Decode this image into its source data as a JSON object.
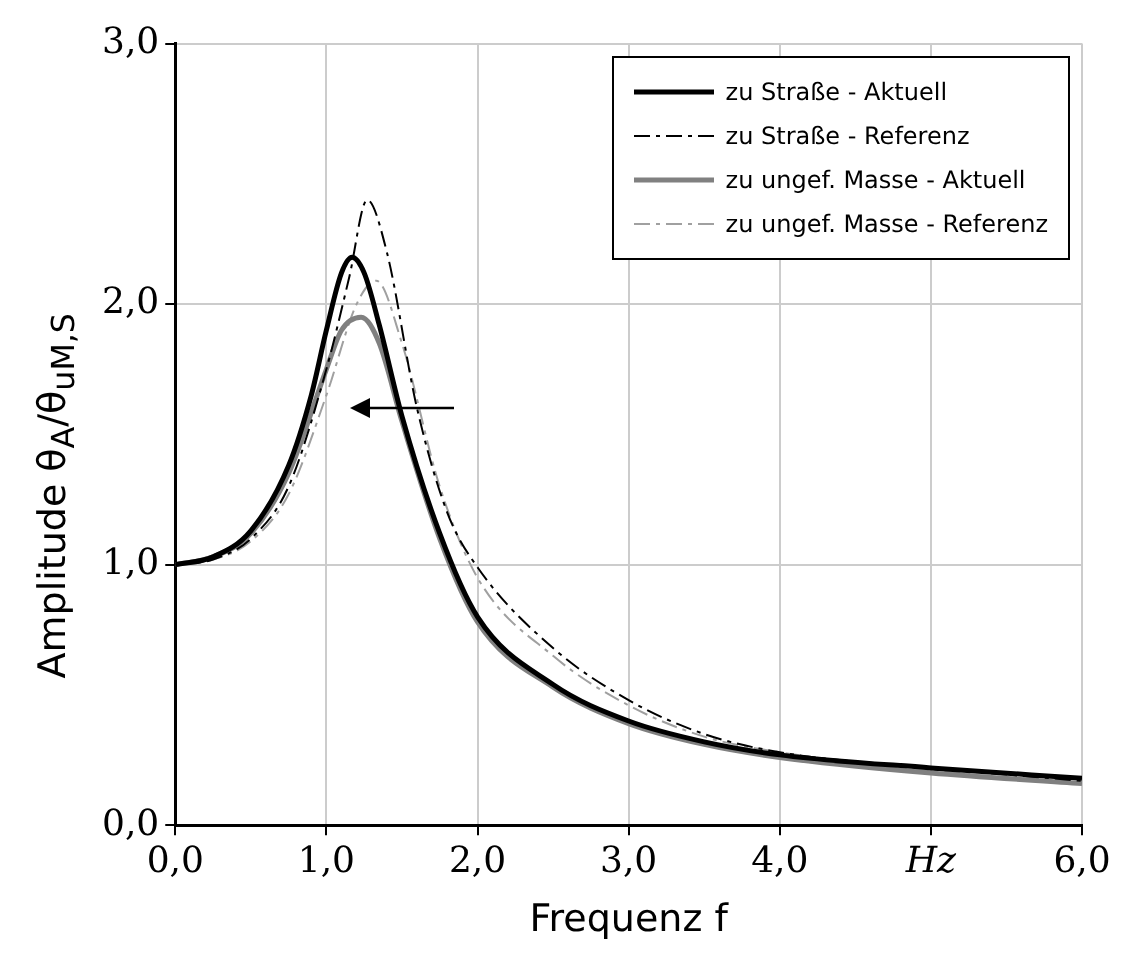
{
  "chart_data": {
    "type": "line",
    "xlabel": "Frequenz f",
    "ylabel": "Amplitude θ$_{A}$/θ$_{uM,S}$",
    "xlim": [
      0,
      6
    ],
    "xticks": [
      {
        "value": 0,
        "label": "0,0"
      },
      {
        "value": 1,
        "label": "1,0"
      },
      {
        "value": 2,
        "label": "2,0"
      },
      {
        "value": 3,
        "label": "3,0"
      },
      {
        "value": 4,
        "label": "4,0"
      },
      {
        "value": 5,
        "label": "Hz"
      },
      {
        "value": 6,
        "label": "6,0"
      }
    ],
    "ylim": [
      0,
      3
    ],
    "yticks": [
      {
        "value": 0,
        "label": "0,0"
      },
      {
        "value": 1,
        "label": "1,0"
      },
      {
        "value": 2,
        "label": "2,0"
      },
      {
        "value": 3,
        "label": "3,0"
      }
    ],
    "grid": true,
    "legend": "top right",
    "marker": "none",
    "series": [
      {
        "name": "zu Straße - Aktuell",
        "color": "#000000",
        "line_style": "solid",
        "x": [
          0,
          0.25,
          0.5,
          0.75,
          0.9,
          1.0,
          1.1,
          1.17,
          1.25,
          1.35,
          1.5,
          1.75,
          2.0,
          2.5,
          3.0,
          3.5,
          4.0,
          5.0,
          6.0
        ],
        "values": [
          1.0,
          1.03,
          1.13,
          1.38,
          1.65,
          1.9,
          2.12,
          2.18,
          2.12,
          1.92,
          1.57,
          1.12,
          0.8,
          0.54,
          0.4,
          0.32,
          0.27,
          0.22,
          0.18
        ]
      },
      {
        "name": "zu Straße - Referenz",
        "color": "#000000",
        "line_style": "dashed",
        "x": [
          0,
          0.25,
          0.5,
          0.75,
          1.0,
          1.15,
          1.27,
          1.4,
          1.6,
          1.8,
          2.0,
          2.5,
          3.0,
          3.5,
          4.0,
          5.0,
          6.0
        ],
        "values": [
          1.0,
          1.02,
          1.1,
          1.3,
          1.75,
          2.1,
          2.4,
          2.2,
          1.6,
          1.2,
          0.99,
          0.68,
          0.48,
          0.35,
          0.28,
          0.22,
          0.17
        ]
      },
      {
        "name": "zu ungef. Masse - Aktuell",
        "color": "#808080",
        "line_style": "solid",
        "x": [
          0,
          0.25,
          0.5,
          0.75,
          1.0,
          1.1,
          1.23,
          1.35,
          1.5,
          1.75,
          2.0,
          2.5,
          3.0,
          3.5,
          4.0,
          5.0,
          6.0
        ],
        "values": [
          1.0,
          1.03,
          1.12,
          1.35,
          1.75,
          1.9,
          1.95,
          1.85,
          1.55,
          1.1,
          0.78,
          0.53,
          0.39,
          0.31,
          0.26,
          0.2,
          0.16
        ]
      },
      {
        "name": "zu ungef. Masse - Referenz",
        "color": "#a0a0a0",
        "line_style": "dashed",
        "x": [
          0,
          0.25,
          0.5,
          0.75,
          1.0,
          1.2,
          1.33,
          1.5,
          1.75,
          2.0,
          2.5,
          3.0,
          3.5,
          4.0,
          5.0,
          6.0
        ],
        "values": [
          1.0,
          1.02,
          1.09,
          1.27,
          1.65,
          2.0,
          2.09,
          1.85,
          1.3,
          0.95,
          0.65,
          0.46,
          0.34,
          0.28,
          0.21,
          0.16
        ]
      }
    ]
  }
}
